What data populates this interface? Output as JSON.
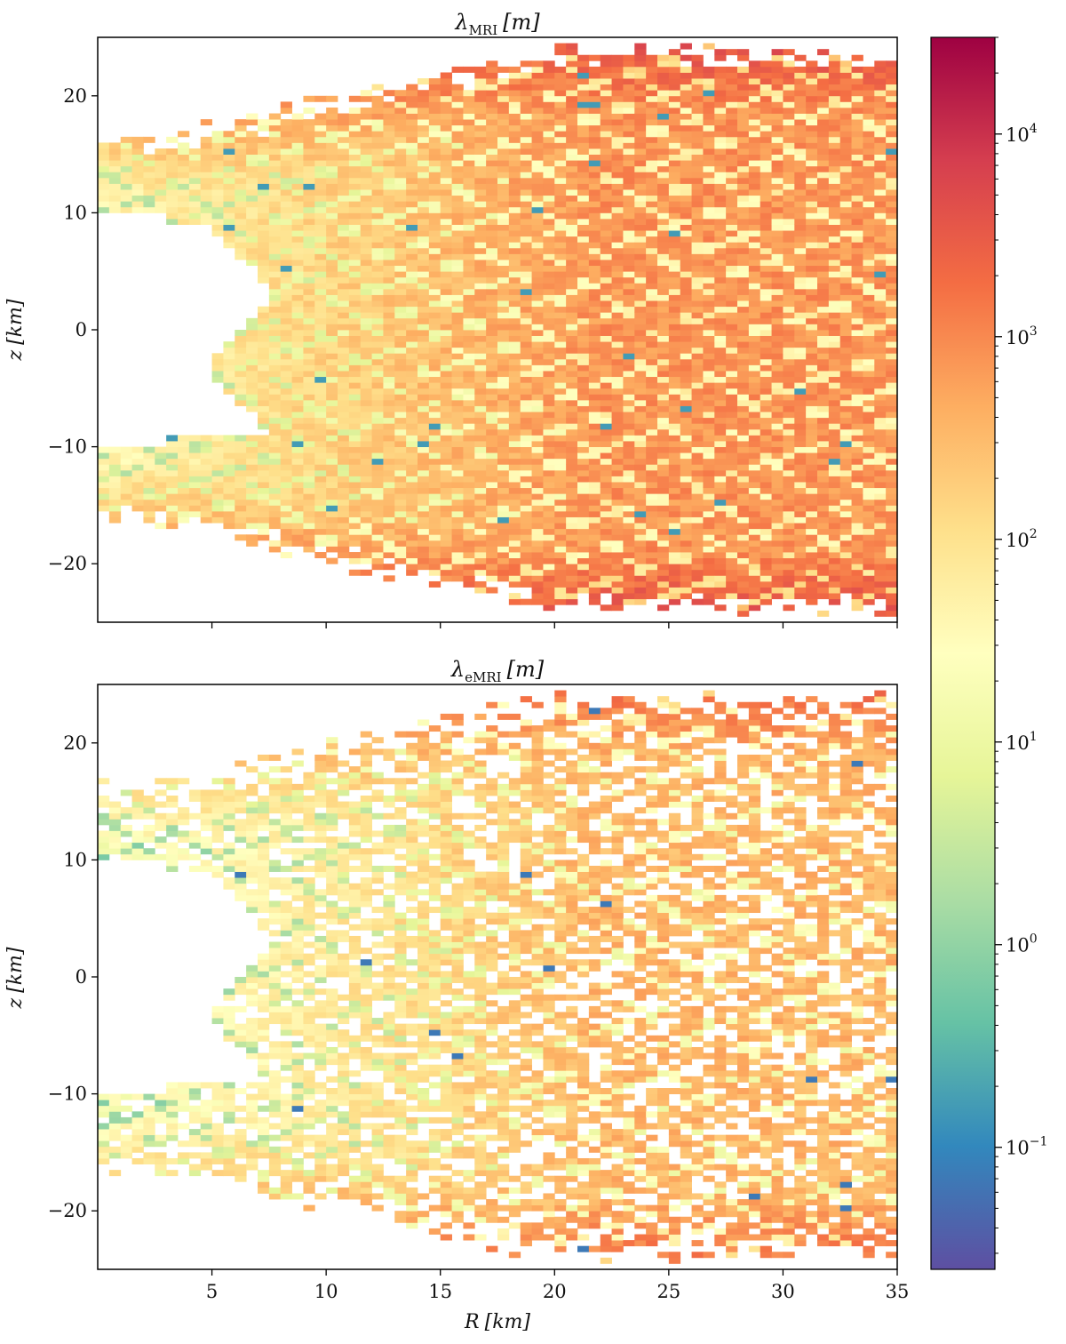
{
  "chart_data": [
    {
      "type": "heatmap",
      "title_symbol": "λ",
      "title_subscript": "MRI",
      "title_unit": "[m]",
      "xlabel": "",
      "ylabel_symbol": "z",
      "ylabel_unit": "[km]",
      "xlim": [
        0,
        35
      ],
      "ylim": [
        -25,
        25
      ],
      "x_ticks": [
        5,
        10,
        15,
        20,
        25,
        30,
        35
      ],
      "y_ticks": [
        -20,
        -10,
        0,
        10,
        20
      ],
      "x_tick_labels_shown": false,
      "colorscale": "Spectral_r",
      "log_scale": true,
      "description_of_field": "wavelength field, mostly 10^2 to 10^3 m, with red outer envelope near |z|≈23 km and a white empty region inside R≲6 km"
    },
    {
      "type": "heatmap",
      "title_symbol": "λ",
      "title_subscript": "eMRI",
      "title_unit": "[m]",
      "xlabel_symbol": "R",
      "xlabel_unit": "[km]",
      "ylabel_symbol": "z",
      "ylabel_unit": "[km]",
      "xlim": [
        0,
        35
      ],
      "ylim": [
        -25,
        25
      ],
      "x_ticks": [
        5,
        10,
        15,
        20,
        25,
        30,
        35
      ],
      "y_ticks": [
        -20,
        -10,
        0,
        10,
        20
      ],
      "x_tick_labels_shown": true,
      "colorscale": "Spectral_r",
      "log_scale": true,
      "description_of_field": "same geometry as upper panel but sparser with many white gaps and lower values"
    }
  ],
  "colorbar": {
    "scale": "log",
    "range": [
      0.025,
      30000
    ],
    "ticks": [
      {
        "value": 0.1,
        "base": "10",
        "exp": "−1"
      },
      {
        "value": 1,
        "base": "10",
        "exp": "0"
      },
      {
        "value": 10,
        "base": "10",
        "exp": "1"
      },
      {
        "value": 100,
        "base": "10",
        "exp": "2"
      },
      {
        "value": 1000,
        "base": "10",
        "exp": "3"
      },
      {
        "value": 10000,
        "base": "10",
        "exp": "4"
      }
    ],
    "colors": [
      "#5e4fa2",
      "#3288bd",
      "#66c2a5",
      "#abdda4",
      "#e6f598",
      "#ffffbf",
      "#fee08b",
      "#fdae61",
      "#f46d43",
      "#d53e4f",
      "#9e0142"
    ]
  }
}
